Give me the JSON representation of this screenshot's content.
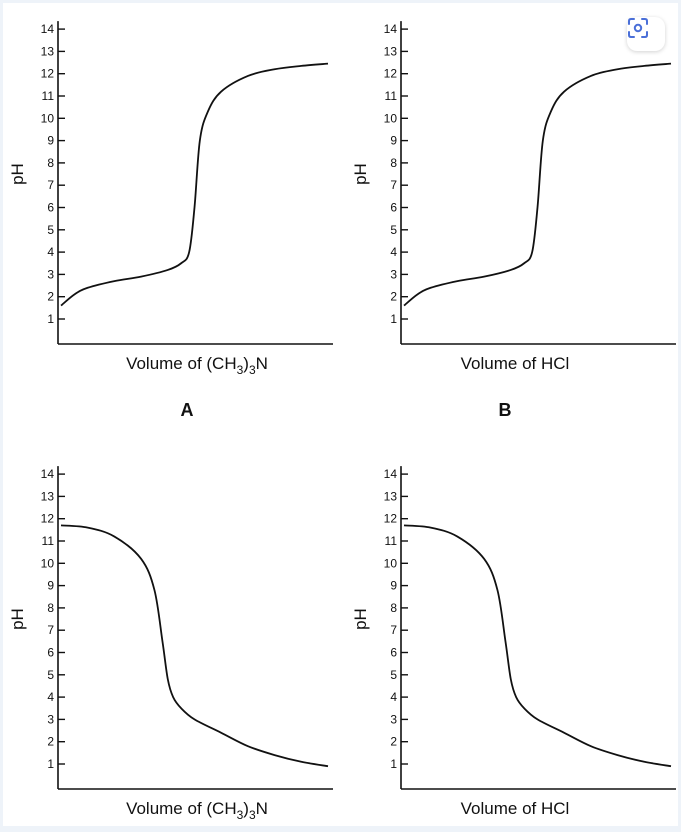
{
  "accent_color": "#4a6fd8",
  "background_color": "#eef3f9",
  "lens_button": {
    "icon": "lens-scan-icon"
  },
  "chart_data": [
    {
      "type": "line",
      "panel_label": "A",
      "ylabel": "pH",
      "xlabel_parts": [
        "Volume of (CH",
        "3",
        ")",
        "3",
        "N"
      ],
      "y_ticks": [
        1,
        2,
        3,
        4,
        5,
        6,
        7,
        8,
        9,
        10,
        11,
        12,
        13,
        14
      ],
      "ylim": [
        0.5,
        14.5
      ],
      "series": [
        {
          "x": [
            0,
            0.05,
            0.1,
            0.2,
            0.3,
            0.4,
            0.45,
            0.48,
            0.5,
            0.52,
            0.55,
            0.6,
            0.7,
            0.8,
            0.9,
            1.0
          ],
          "y": [
            1.6,
            2.1,
            2.4,
            2.7,
            2.9,
            3.2,
            3.5,
            4.0,
            6.0,
            9.0,
            10.3,
            11.2,
            11.9,
            12.2,
            12.35,
            12.45
          ]
        }
      ]
    },
    {
      "type": "line",
      "panel_label": "B",
      "ylabel": "pH",
      "xlabel_parts": [
        "Volume of HCl"
      ],
      "y_ticks": [
        1,
        2,
        3,
        4,
        5,
        6,
        7,
        8,
        9,
        10,
        11,
        12,
        13,
        14
      ],
      "ylim": [
        0.5,
        14.5
      ],
      "series": [
        {
          "x": [
            0,
            0.05,
            0.1,
            0.2,
            0.3,
            0.4,
            0.45,
            0.48,
            0.5,
            0.52,
            0.55,
            0.6,
            0.7,
            0.8,
            0.9,
            1.0
          ],
          "y": [
            1.6,
            2.1,
            2.4,
            2.7,
            2.9,
            3.2,
            3.5,
            4.0,
            6.0,
            9.0,
            10.3,
            11.2,
            11.9,
            12.2,
            12.35,
            12.45
          ]
        }
      ]
    },
    {
      "type": "line",
      "panel_label": "",
      "ylabel": "pH",
      "xlabel_parts": [
        "Volume of (CH",
        "3",
        ")",
        "3",
        "N"
      ],
      "y_ticks": [
        1,
        2,
        3,
        4,
        5,
        6,
        7,
        8,
        9,
        10,
        11,
        12,
        13,
        14
      ],
      "ylim": [
        0.5,
        14.5
      ],
      "series": [
        {
          "x": [
            0,
            0.1,
            0.2,
            0.3,
            0.35,
            0.38,
            0.4,
            0.42,
            0.45,
            0.5,
            0.6,
            0.7,
            0.8,
            0.9,
            1.0
          ],
          "y": [
            11.7,
            11.6,
            11.2,
            10.2,
            8.8,
            6.5,
            4.8,
            4.0,
            3.5,
            3.0,
            2.4,
            1.8,
            1.4,
            1.1,
            0.9
          ]
        }
      ]
    },
    {
      "type": "line",
      "panel_label": "",
      "ylabel": "pH",
      "xlabel_parts": [
        "Volume of HCl"
      ],
      "y_ticks": [
        1,
        2,
        3,
        4,
        5,
        6,
        7,
        8,
        9,
        10,
        11,
        12,
        13,
        14
      ],
      "ylim": [
        0.5,
        14.5
      ],
      "series": [
        {
          "x": [
            0,
            0.1,
            0.2,
            0.3,
            0.35,
            0.38,
            0.4,
            0.42,
            0.45,
            0.5,
            0.6,
            0.7,
            0.8,
            0.9,
            1.0
          ],
          "y": [
            11.7,
            11.6,
            11.2,
            10.2,
            8.8,
            6.5,
            4.8,
            4.0,
            3.5,
            3.0,
            2.4,
            1.8,
            1.4,
            1.1,
            0.9
          ]
        }
      ]
    }
  ]
}
